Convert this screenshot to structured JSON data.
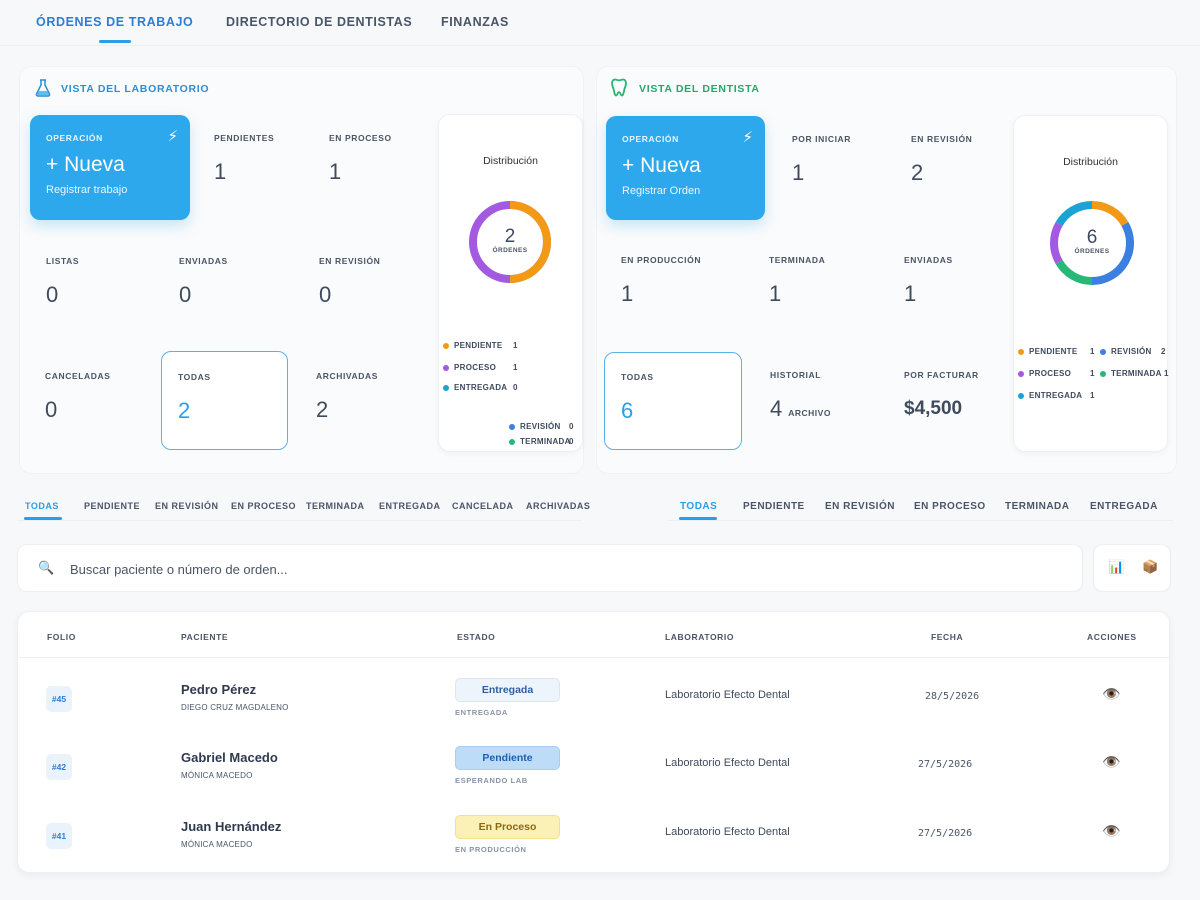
{
  "tabs": [
    {
      "label": "ÓRDENES DE TRABAJO",
      "active": true
    },
    {
      "label": "DIRECTORIO DE DENTISTAS",
      "active": false
    },
    {
      "label": "FINANZAS",
      "active": false
    }
  ],
  "lab": {
    "title": "VISTA DEL LABORATORIO",
    "icon": "flask-icon",
    "operation": {
      "tag": "OPERACIÓN",
      "title": "+ Nueva",
      "subtitle": "Registrar trabajo",
      "icon": "lightning-icon"
    },
    "stats": {
      "pendientes": {
        "label": "PENDIENTES",
        "value": "1"
      },
      "en_proceso": {
        "label": "EN PROCESO",
        "value": "1"
      },
      "listas": {
        "label": "LISTAS",
        "value": "0"
      },
      "enviadas": {
        "label": "ENVIADAS",
        "value": "0"
      },
      "en_revision": {
        "label": "EN REVISIÓN",
        "value": "0"
      },
      "canceladas": {
        "label": "CANCELADAS",
        "value": "0"
      },
      "todas": {
        "label": "TODAS",
        "value": "2"
      },
      "archivadas": {
        "label": "ARCHIVADAS",
        "value": "2"
      }
    },
    "distribution": {
      "title": "Distribución",
      "total": "2",
      "total_label": "ÓRDENES",
      "legend": [
        {
          "label": "PENDIENTE",
          "value": "1",
          "color": "#f29a16"
        },
        {
          "label": "PROCESO",
          "value": "1",
          "color": "#a35ae0"
        },
        {
          "label": "ENTREGADA",
          "value": "0",
          "color": "#1aa3d4"
        },
        {
          "label": "REVISIÓN",
          "value": "0",
          "color": "#3b7fe0"
        },
        {
          "label": "TERMINADA",
          "value": "0",
          "color": "#27b877"
        }
      ]
    }
  },
  "dentist": {
    "title": "VISTA DEL DENTISTA",
    "icon": "tooth-icon",
    "operation": {
      "tag": "OPERACIÓN",
      "title": "+ Nueva",
      "subtitle": "Registrar Orden",
      "icon": "lightning-icon"
    },
    "stats": {
      "por_iniciar": {
        "label": "POR INICIAR",
        "value": "1"
      },
      "en_revision": {
        "label": "EN REVISIÓN",
        "value": "2"
      },
      "en_produccion": {
        "label": "EN PRODUCCIÓN",
        "value": "1"
      },
      "terminada": {
        "label": "TERMINADA",
        "value": "1"
      },
      "enviadas": {
        "label": "ENVIADAS",
        "value": "1"
      },
      "todas": {
        "label": "TODAS",
        "value": "6"
      },
      "historial": {
        "label": "HISTORIAL",
        "value": "4",
        "suffix": "ARCHIVO"
      },
      "por_facturar": {
        "label": "POR FACTURAR",
        "value": "$4,500"
      }
    },
    "distribution": {
      "title": "Distribución",
      "total": "6",
      "total_label": "ÓRDENES",
      "legend": [
        {
          "label": "PENDIENTE",
          "value": "1",
          "color": "#f29a16"
        },
        {
          "label": "REVISIÓN",
          "value": "2",
          "color": "#3b7fe0"
        },
        {
          "label": "PROCESO",
          "value": "1",
          "color": "#a35ae0"
        },
        {
          "label": "TERMINADA",
          "value": "1",
          "color": "#27b877"
        },
        {
          "label": "ENTREGADA",
          "value": "1",
          "color": "#1aa3d4"
        }
      ]
    }
  },
  "lab_filters": [
    "TODAS",
    "PENDIENTE",
    "EN REVISIÓN",
    "EN PROCESO",
    "TERMINADA",
    "ENTREGADA",
    "CANCELADA",
    "ARCHIVADAS"
  ],
  "dentist_filters": [
    "TODAS",
    "PENDIENTE",
    "EN REVISIÓN",
    "EN PROCESO",
    "TERMINADA",
    "ENTREGADA"
  ],
  "search": {
    "placeholder": "Buscar paciente o número de orden...",
    "icon": "search-icon"
  },
  "tools": [
    {
      "icon": "bar-chart-icon"
    },
    {
      "icon": "archive-box-icon"
    }
  ],
  "table": {
    "headers": [
      "FOLIO",
      "PACIENTE",
      "ESTADO",
      "LABORATORIO",
      "FECHA",
      "ACCIONES"
    ],
    "rows": [
      {
        "folio": "#45",
        "patient": "Pedro Pérez",
        "dentist": "DIEGO CRUZ MAGDALENO",
        "status": "Entregada",
        "substatus": "ENTREGADA",
        "lab": "Laboratorio Efecto Dental",
        "date": "28/5/2026",
        "action_icon": "eye-icon"
      },
      {
        "folio": "#42",
        "patient": "Gabriel Macedo",
        "dentist": "MÓNICA MACEDO",
        "status": "Pendiente",
        "substatus": "ESPERANDO LAB",
        "lab": "Laboratorio Efecto Dental",
        "date": "27/5/2026",
        "action_icon": "eye-icon"
      },
      {
        "folio": "#41",
        "patient": "Juan Hernández",
        "dentist": "MÓNICA MACEDO",
        "status": "En Proceso",
        "substatus": "EN PRODUCCIÓN",
        "lab": "Laboratorio Efecto Dental",
        "date": "27/5/2026",
        "action_icon": "eye-icon"
      }
    ]
  }
}
